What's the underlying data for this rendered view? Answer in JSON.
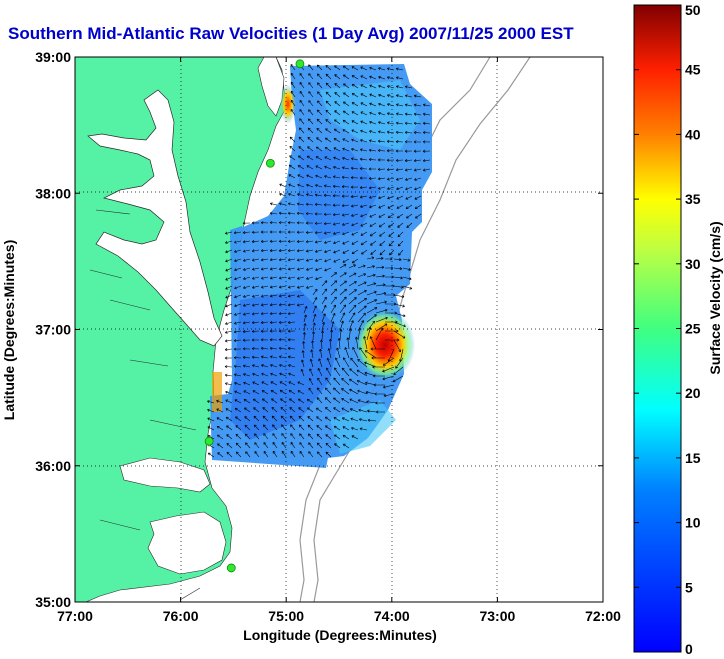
{
  "title": "Southern Mid-Atlantic Raw Velocities (1 Day Avg) 2007/11/25 2000 EST",
  "map": {
    "x_label": "Longitude (Degrees:Minutes)",
    "y_label": "Latitude (Degrees:Minutes)",
    "x_range": [
      -77,
      -72
    ],
    "y_range": [
      35,
      39
    ],
    "x_ticks": [
      {
        "value": -77,
        "label": "77:00"
      },
      {
        "value": -76,
        "label": "76:00"
      },
      {
        "value": -75,
        "label": "75:00"
      },
      {
        "value": -74,
        "label": "74:00"
      },
      {
        "value": -73,
        "label": "73:00"
      },
      {
        "value": -72,
        "label": "72:00"
      }
    ],
    "y_ticks": [
      {
        "value": 35,
        "label": "35:00"
      },
      {
        "value": 36,
        "label": "36:00"
      },
      {
        "value": 37,
        "label": "37:00"
      },
      {
        "value": 38,
        "label": "38:00"
      },
      {
        "value": 39,
        "label": "39:00"
      }
    ],
    "grid": "dotted",
    "colors": {
      "land": "#55f2a5",
      "water": "#ffffff",
      "isobath": "#999999",
      "station": "#2ee82e",
      "title": "#0000cc",
      "vector": "#000000"
    },
    "stations": [
      {
        "lon": -74.87,
        "lat": 38.95
      },
      {
        "lon": -75.15,
        "lat": 38.22
      },
      {
        "lon": -75.73,
        "lat": 36.18
      },
      {
        "lon": -75.52,
        "lat": 35.25
      }
    ]
  },
  "colorbar": {
    "label": "Surface Velocity (cm/s)",
    "range": [
      0,
      50
    ],
    "ticks": [
      {
        "value": 0,
        "label": "0"
      },
      {
        "value": 5,
        "label": "5"
      },
      {
        "value": 10,
        "label": "10"
      },
      {
        "value": 15,
        "label": "15"
      },
      {
        "value": 20,
        "label": "20"
      },
      {
        "value": 25,
        "label": "25"
      },
      {
        "value": 30,
        "label": "30"
      },
      {
        "value": 35,
        "label": "35"
      },
      {
        "value": 40,
        "label": "40"
      },
      {
        "value": 45,
        "label": "45"
      },
      {
        "value": 50,
        "label": "50"
      }
    ],
    "colormap": "jet"
  }
}
